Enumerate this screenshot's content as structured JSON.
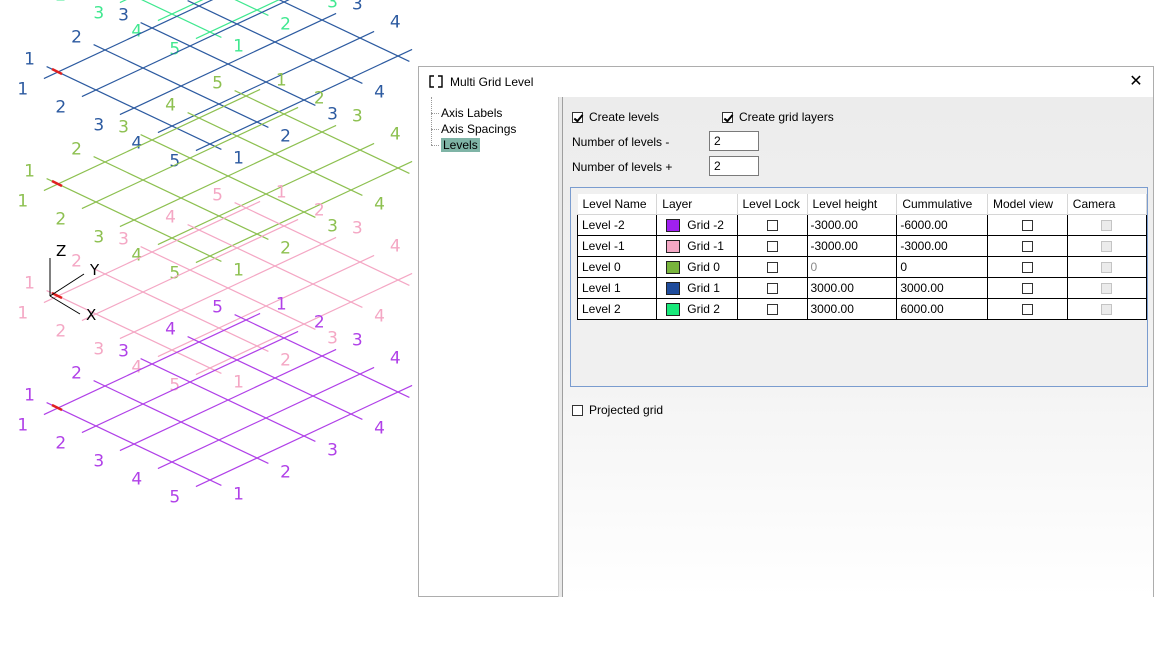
{
  "window": {
    "title": "Multi Grid Level"
  },
  "tree": {
    "items": [
      {
        "label": "Axis Labels"
      },
      {
        "label": "Axis Spacings"
      },
      {
        "label": "Levels",
        "selected": true
      }
    ]
  },
  "options": {
    "create_levels": {
      "label": "Create levels",
      "checked": true
    },
    "create_grid_layers": {
      "label": "Create grid layers",
      "checked": true
    },
    "levels_minus": {
      "label": "Number of levels -",
      "value": "2"
    },
    "levels_plus": {
      "label": "Number of levels +",
      "value": "2"
    },
    "projected_grid": {
      "label": "Projected grid",
      "checked": false
    }
  },
  "table": {
    "headers": [
      "Level Name",
      "Layer",
      "Level Lock",
      "Level height",
      "Cummulative",
      "Model view",
      "Camera"
    ],
    "rows": [
      {
        "name": "Level -2",
        "layer": "Grid -2",
        "color": "#a020f0",
        "height": "-3000.00",
        "cumulative": "-6000.00"
      },
      {
        "name": "Level -1",
        "layer": "Grid -1",
        "color": "#f4a7c4",
        "height": "-3000.00",
        "cumulative": "-3000.00"
      },
      {
        "name": "Level 0",
        "layer": "Grid 0",
        "color": "#78b43c",
        "height": "0",
        "cumulative": "0"
      },
      {
        "name": "Level 1",
        "layer": "Grid 1",
        "color": "#1e4b9b",
        "height": "3000.00",
        "cumulative": "3000.00"
      },
      {
        "name": "Level 2",
        "layer": "Grid 2",
        "color": "#18e87a",
        "height": "3000.00",
        "cumulative": "6000.00"
      }
    ]
  },
  "cad": {
    "grid_colors": [
      "#40e890",
      "#2c5aa0",
      "#8dc050",
      "#f4a7c4",
      "#b040e8"
    ],
    "axis_labels": {
      "x": "X",
      "y": "Y",
      "z": "Z"
    },
    "label_digits": [
      "1",
      "2",
      "3",
      "4",
      "5"
    ]
  }
}
